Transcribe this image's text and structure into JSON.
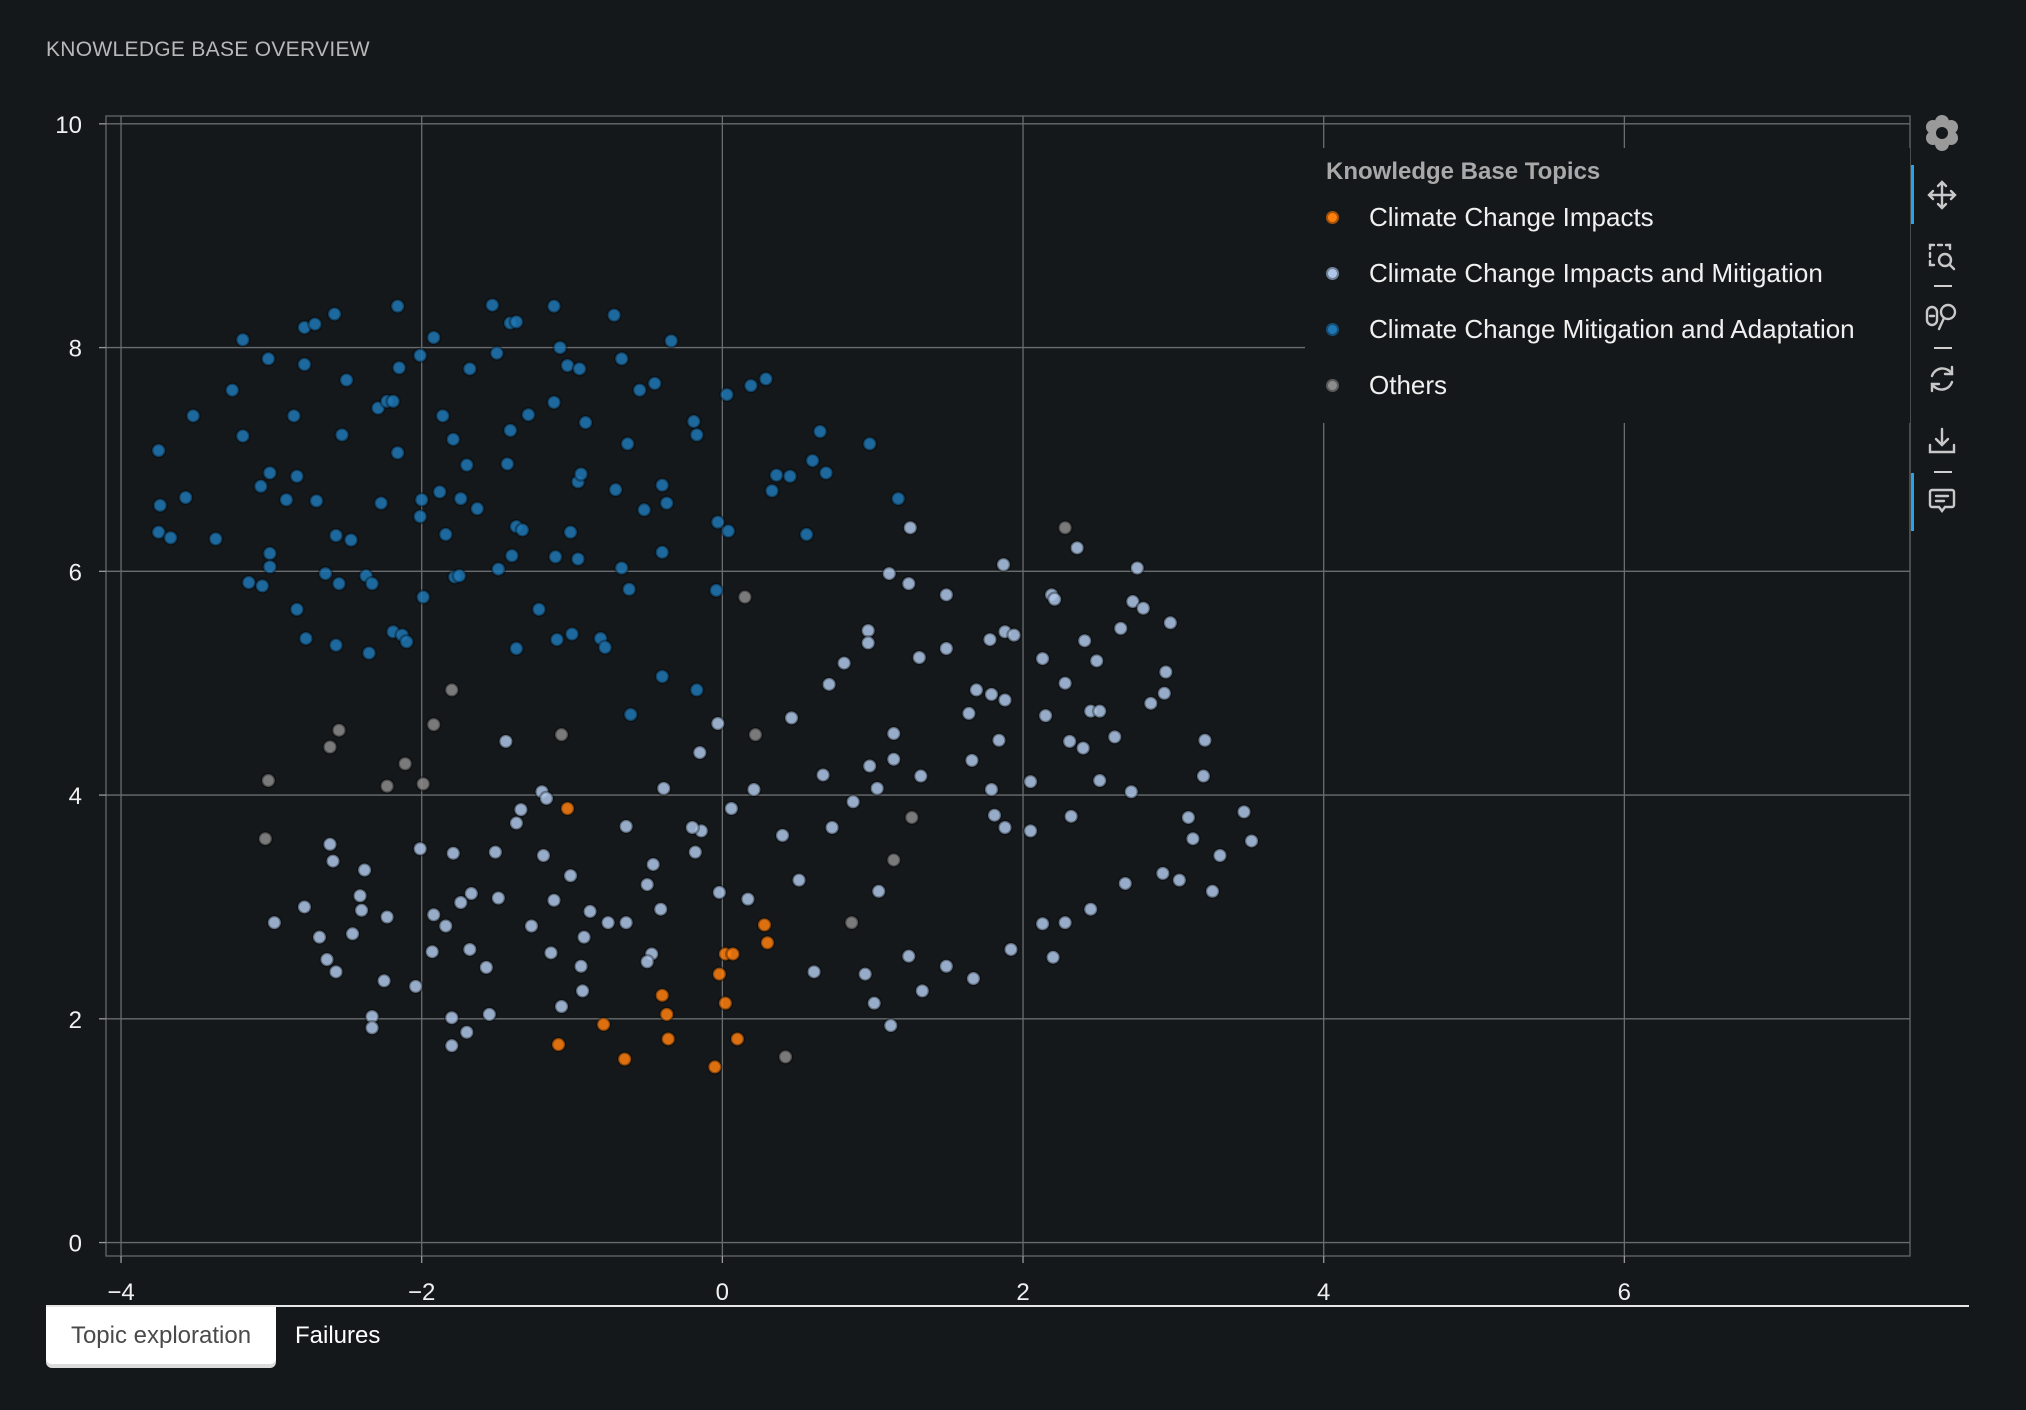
{
  "header": {
    "title": "KNOWLEDGE BASE OVERVIEW"
  },
  "tabs": [
    {
      "label": "Topic exploration",
      "active": true
    },
    {
      "label": "Failures",
      "active": false
    }
  ],
  "toolbar": {
    "icons": [
      "bokeh-logo-icon",
      "pan-icon",
      "box-zoom-icon",
      "wheel-zoom-icon",
      "reset-icon",
      "save-icon",
      "hover-icon"
    ],
    "active_color": "#26a4e6"
  },
  "chart_data": {
    "type": "scatter",
    "title": "",
    "xlabel": "",
    "ylabel": "",
    "xlim": [
      -4.1,
      7.9
    ],
    "ylim": [
      -0.12,
      10.07
    ],
    "xticks": [
      -4,
      -2,
      0,
      2,
      4,
      6
    ],
    "xtick_labels": [
      "−4",
      "−2",
      "0",
      "2",
      "4",
      "6"
    ],
    "yticks": [
      0,
      2,
      4,
      6,
      8,
      10
    ],
    "ytick_labels": [
      "0",
      "2",
      "4",
      "6",
      "8",
      "10"
    ],
    "grid": true,
    "legend": {
      "title": "Knowledge Base Topics",
      "placement": "top-right"
    },
    "series": [
      {
        "name": "Climate Change Impacts",
        "color": "#ff7f0e",
        "points": [
          [
            -1.03,
            3.88
          ],
          [
            0.28,
            2.84
          ],
          [
            0.3,
            2.68
          ],
          [
            0.02,
            2.58
          ],
          [
            0.07,
            2.58
          ],
          [
            -0.02,
            2.4
          ],
          [
            -0.4,
            2.21
          ],
          [
            -0.37,
            2.04
          ],
          [
            0.02,
            2.14
          ],
          [
            -0.36,
            1.82
          ],
          [
            0.1,
            1.82
          ],
          [
            -0.79,
            1.95
          ],
          [
            -1.09,
            1.77
          ],
          [
            -0.65,
            1.64
          ],
          [
            -0.05,
            1.57
          ]
        ]
      },
      {
        "name": "Climate Change Impacts and Mitigation",
        "color": "#aec7e8",
        "points": [
          [
            1.25,
            6.39
          ],
          [
            1.11,
            5.98
          ],
          [
            1.24,
            5.89
          ],
          [
            1.87,
            6.06
          ],
          [
            1.49,
            5.79
          ],
          [
            0.97,
            5.47
          ],
          [
            0.97,
            5.36
          ],
          [
            0.81,
            5.18
          ],
          [
            0.71,
            4.99
          ],
          [
            1.31,
            5.23
          ],
          [
            1.49,
            5.31
          ],
          [
            1.78,
            5.39
          ],
          [
            1.88,
            5.46
          ],
          [
            1.94,
            5.43
          ],
          [
            2.19,
            5.79
          ],
          [
            2.21,
            5.75
          ],
          [
            2.13,
            5.22
          ],
          [
            2.36,
            6.21
          ],
          [
            2.41,
            5.38
          ],
          [
            2.49,
            5.2
          ],
          [
            2.28,
            5.0
          ],
          [
            1.69,
            4.94
          ],
          [
            1.79,
            4.9
          ],
          [
            1.88,
            4.85
          ],
          [
            1.64,
            4.73
          ],
          [
            2.15,
            4.71
          ],
          [
            2.45,
            4.75
          ],
          [
            2.51,
            4.75
          ],
          [
            2.65,
            5.49
          ],
          [
            2.73,
            5.73
          ],
          [
            2.8,
            5.67
          ],
          [
            2.76,
            6.03
          ],
          [
            2.98,
            5.54
          ],
          [
            2.95,
            5.1
          ],
          [
            2.94,
            4.91
          ],
          [
            2.85,
            4.82
          ],
          [
            2.61,
            4.52
          ],
          [
            2.31,
            4.48
          ],
          [
            2.4,
            4.42
          ],
          [
            2.51,
            4.13
          ],
          [
            2.72,
            4.03
          ],
          [
            3.21,
            4.49
          ],
          [
            3.2,
            4.17
          ],
          [
            3.1,
            3.8
          ],
          [
            3.13,
            3.61
          ],
          [
            3.31,
            3.46
          ],
          [
            3.47,
            3.85
          ],
          [
            3.52,
            3.59
          ],
          [
            2.93,
            3.3
          ],
          [
            3.04,
            3.24
          ],
          [
            3.26,
            3.14
          ],
          [
            2.68,
            3.21
          ],
          [
            2.45,
            2.98
          ],
          [
            2.32,
            3.81
          ],
          [
            2.28,
            2.86
          ],
          [
            2.13,
            2.85
          ],
          [
            2.2,
            2.55
          ],
          [
            1.92,
            2.62
          ],
          [
            2.05,
            3.68
          ],
          [
            2.05,
            4.12
          ],
          [
            1.79,
            4.05
          ],
          [
            1.81,
            3.82
          ],
          [
            1.88,
            3.71
          ],
          [
            1.84,
            4.49
          ],
          [
            1.66,
            4.31
          ],
          [
            1.32,
            4.17
          ],
          [
            1.14,
            4.55
          ],
          [
            1.14,
            4.32
          ],
          [
            1.03,
            4.06
          ],
          [
            0.98,
            4.26
          ],
          [
            0.87,
            3.94
          ],
          [
            0.67,
            4.18
          ],
          [
            0.73,
            3.71
          ],
          [
            0.46,
            4.69
          ],
          [
            0.21,
            4.05
          ],
          [
            0.06,
            3.88
          ],
          [
            -0.03,
            4.64
          ],
          [
            -0.15,
            4.38
          ],
          [
            0.4,
            3.64
          ],
          [
            0.51,
            3.24
          ],
          [
            0.17,
            3.07
          ],
          [
            -0.02,
            3.13
          ],
          [
            -0.14,
            3.68
          ],
          [
            -0.2,
            3.71
          ],
          [
            -0.18,
            3.49
          ],
          [
            1.04,
            3.14
          ],
          [
            1.24,
            2.56
          ],
          [
            1.33,
            2.25
          ],
          [
            1.49,
            2.47
          ],
          [
            1.67,
            2.36
          ],
          [
            0.95,
            2.4
          ],
          [
            0.61,
            2.42
          ],
          [
            1.01,
            2.14
          ],
          [
            1.12,
            1.94
          ],
          [
            -0.39,
            4.06
          ],
          [
            -0.64,
            3.72
          ],
          [
            -0.46,
            3.38
          ],
          [
            -0.5,
            3.2
          ],
          [
            -0.41,
            2.98
          ],
          [
            -0.64,
            2.86
          ],
          [
            -0.76,
            2.86
          ],
          [
            -0.88,
            2.96
          ],
          [
            -0.92,
            2.73
          ],
          [
            -0.94,
            2.47
          ],
          [
            -0.93,
            2.25
          ],
          [
            -0.47,
            2.58
          ],
          [
            -0.5,
            2.51
          ],
          [
            -1.01,
            3.28
          ],
          [
            -1.12,
            3.06
          ],
          [
            -1.14,
            2.59
          ],
          [
            -1.07,
            2.11
          ],
          [
            -1.27,
            2.83
          ],
          [
            -1.19,
            3.46
          ],
          [
            -1.2,
            4.03
          ],
          [
            -1.17,
            3.97
          ],
          [
            -1.34,
            3.87
          ],
          [
            -1.37,
            3.75
          ],
          [
            -1.44,
            4.48
          ],
          [
            -1.51,
            3.49
          ],
          [
            -1.49,
            3.08
          ],
          [
            -1.57,
            2.46
          ],
          [
            -1.55,
            2.04
          ],
          [
            -1.67,
            3.12
          ],
          [
            -1.74,
            3.04
          ],
          [
            -1.68,
            2.62
          ],
          [
            -1.7,
            1.88
          ],
          [
            -1.8,
            2.01
          ],
          [
            -1.8,
            1.76
          ],
          [
            -1.79,
            3.48
          ],
          [
            -1.84,
            2.83
          ],
          [
            -1.92,
            2.93
          ],
          [
            -1.93,
            2.6
          ],
          [
            -2.04,
            2.29
          ],
          [
            -2.01,
            3.52
          ],
          [
            -2.23,
            2.91
          ],
          [
            -2.25,
            2.34
          ],
          [
            -2.33,
            2.02
          ],
          [
            -2.33,
            1.92
          ],
          [
            -2.38,
            3.33
          ],
          [
            -2.41,
            3.1
          ],
          [
            -2.4,
            2.97
          ],
          [
            -2.46,
            2.76
          ],
          [
            -2.61,
            3.56
          ],
          [
            -2.59,
            3.41
          ],
          [
            -2.63,
            2.53
          ],
          [
            -2.57,
            2.42
          ],
          [
            -2.68,
            2.73
          ],
          [
            -2.78,
            3.0
          ],
          [
            -2.98,
            2.86
          ]
        ]
      },
      {
        "name": "Climate Change Mitigation and Adaptation",
        "color": "#1f77b4",
        "points": [
          [
            -3.75,
            7.08
          ],
          [
            -3.74,
            6.59
          ],
          [
            -3.75,
            6.35
          ],
          [
            -3.67,
            6.3
          ],
          [
            -3.57,
            6.66
          ],
          [
            -3.52,
            7.39
          ],
          [
            -3.37,
            6.29
          ],
          [
            -3.26,
            7.62
          ],
          [
            -3.19,
            8.07
          ],
          [
            -3.19,
            7.21
          ],
          [
            -3.15,
            5.9
          ],
          [
            -3.07,
            6.76
          ],
          [
            -3.06,
            5.87
          ],
          [
            -3.02,
            7.9
          ],
          [
            -3.01,
            6.88
          ],
          [
            -3.01,
            6.16
          ],
          [
            -3.01,
            6.04
          ],
          [
            -2.9,
            6.64
          ],
          [
            -2.85,
            7.39
          ],
          [
            -2.83,
            6.85
          ],
          [
            -2.83,
            5.66
          ],
          [
            -2.78,
            7.85
          ],
          [
            -2.78,
            8.18
          ],
          [
            -2.77,
            5.4
          ],
          [
            -2.71,
            8.21
          ],
          [
            -2.7,
            6.63
          ],
          [
            -2.64,
            5.98
          ],
          [
            -2.58,
            8.3
          ],
          [
            -2.57,
            6.32
          ],
          [
            -2.57,
            5.34
          ],
          [
            -2.55,
            5.89
          ],
          [
            -2.53,
            7.22
          ],
          [
            -2.5,
            7.71
          ],
          [
            -2.47,
            6.28
          ],
          [
            -2.37,
            5.96
          ],
          [
            -2.35,
            5.27
          ],
          [
            -2.33,
            5.89
          ],
          [
            -2.29,
            7.46
          ],
          [
            -2.27,
            6.61
          ],
          [
            -2.23,
            7.52
          ],
          [
            -2.19,
            7.52
          ],
          [
            -2.19,
            5.46
          ],
          [
            -2.16,
            8.37
          ],
          [
            -2.16,
            7.06
          ],
          [
            -2.15,
            7.82
          ],
          [
            -2.13,
            5.43
          ],
          [
            -2.1,
            5.37
          ],
          [
            -2.01,
            7.93
          ],
          [
            -2.01,
            6.49
          ],
          [
            -2.0,
            6.64
          ],
          [
            -1.99,
            5.77
          ],
          [
            -1.92,
            8.09
          ],
          [
            -1.88,
            6.71
          ],
          [
            -1.86,
            7.39
          ],
          [
            -1.84,
            6.33
          ],
          [
            -1.79,
            7.18
          ],
          [
            -1.78,
            5.95
          ],
          [
            -1.75,
            5.96
          ],
          [
            -1.74,
            6.65
          ],
          [
            -1.7,
            6.95
          ],
          [
            -1.68,
            7.81
          ],
          [
            -1.63,
            6.56
          ],
          [
            -1.53,
            8.38
          ],
          [
            -1.5,
            7.95
          ],
          [
            -1.49,
            6.02
          ],
          [
            -1.43,
            6.96
          ],
          [
            -1.41,
            8.22
          ],
          [
            -1.41,
            7.26
          ],
          [
            -1.4,
            6.14
          ],
          [
            -1.37,
            8.23
          ],
          [
            -1.37,
            5.31
          ],
          [
            -1.37,
            6.4
          ],
          [
            -1.33,
            6.37
          ],
          [
            -1.29,
            7.4
          ],
          [
            -1.22,
            5.66
          ],
          [
            -1.12,
            8.37
          ],
          [
            -1.12,
            7.51
          ],
          [
            -1.11,
            6.13
          ],
          [
            -1.08,
            8.0
          ],
          [
            -1.1,
            5.39
          ],
          [
            -1.03,
            7.84
          ],
          [
            -1.01,
            6.35
          ],
          [
            -1.0,
            5.44
          ],
          [
            -0.96,
            6.8
          ],
          [
            -0.95,
            7.81
          ],
          [
            -0.94,
            6.87
          ],
          [
            -0.96,
            6.11
          ],
          [
            -0.91,
            7.33
          ],
          [
            -0.81,
            5.4
          ],
          [
            -0.78,
            5.32
          ],
          [
            -0.72,
            8.29
          ],
          [
            -0.71,
            6.73
          ],
          [
            -0.67,
            7.9
          ],
          [
            -0.67,
            6.03
          ],
          [
            -0.63,
            7.14
          ],
          [
            -0.62,
            5.84
          ],
          [
            -0.61,
            4.72
          ],
          [
            -0.55,
            7.62
          ],
          [
            -0.52,
            6.55
          ],
          [
            -0.45,
            7.68
          ],
          [
            -0.4,
            5.06
          ],
          [
            -0.4,
            6.77
          ],
          [
            -0.4,
            6.17
          ],
          [
            -0.37,
            6.61
          ],
          [
            -0.34,
            8.06
          ],
          [
            -0.19,
            7.34
          ],
          [
            -0.17,
            7.22
          ],
          [
            -0.17,
            4.94
          ],
          [
            -0.04,
            5.83
          ],
          [
            -0.03,
            6.44
          ],
          [
            0.03,
            7.58
          ],
          [
            0.04,
            6.36
          ],
          [
            0.19,
            7.66
          ],
          [
            0.29,
            7.72
          ],
          [
            0.33,
            6.72
          ],
          [
            0.36,
            6.86
          ],
          [
            0.45,
            6.85
          ],
          [
            0.56,
            6.33
          ],
          [
            0.6,
            6.99
          ],
          [
            0.65,
            7.25
          ],
          [
            0.69,
            6.88
          ],
          [
            0.98,
            7.14
          ],
          [
            1.17,
            6.65
          ]
        ]
      },
      {
        "name": "Others",
        "color": "#8c8c8c",
        "points": [
          [
            2.28,
            6.39
          ],
          [
            0.15,
            5.77
          ],
          [
            -1.8,
            4.94
          ],
          [
            -2.55,
            4.58
          ],
          [
            -2.61,
            4.43
          ],
          [
            -2.11,
            4.28
          ],
          [
            -1.92,
            4.63
          ],
          [
            -1.07,
            4.54
          ],
          [
            0.22,
            4.54
          ],
          [
            -3.02,
            4.13
          ],
          [
            -2.23,
            4.08
          ],
          [
            -1.99,
            4.1
          ],
          [
            -3.04,
            3.61
          ],
          [
            1.26,
            3.8
          ],
          [
            1.14,
            3.42
          ],
          [
            0.86,
            2.86
          ],
          [
            0.42,
            1.66
          ]
        ]
      }
    ]
  }
}
